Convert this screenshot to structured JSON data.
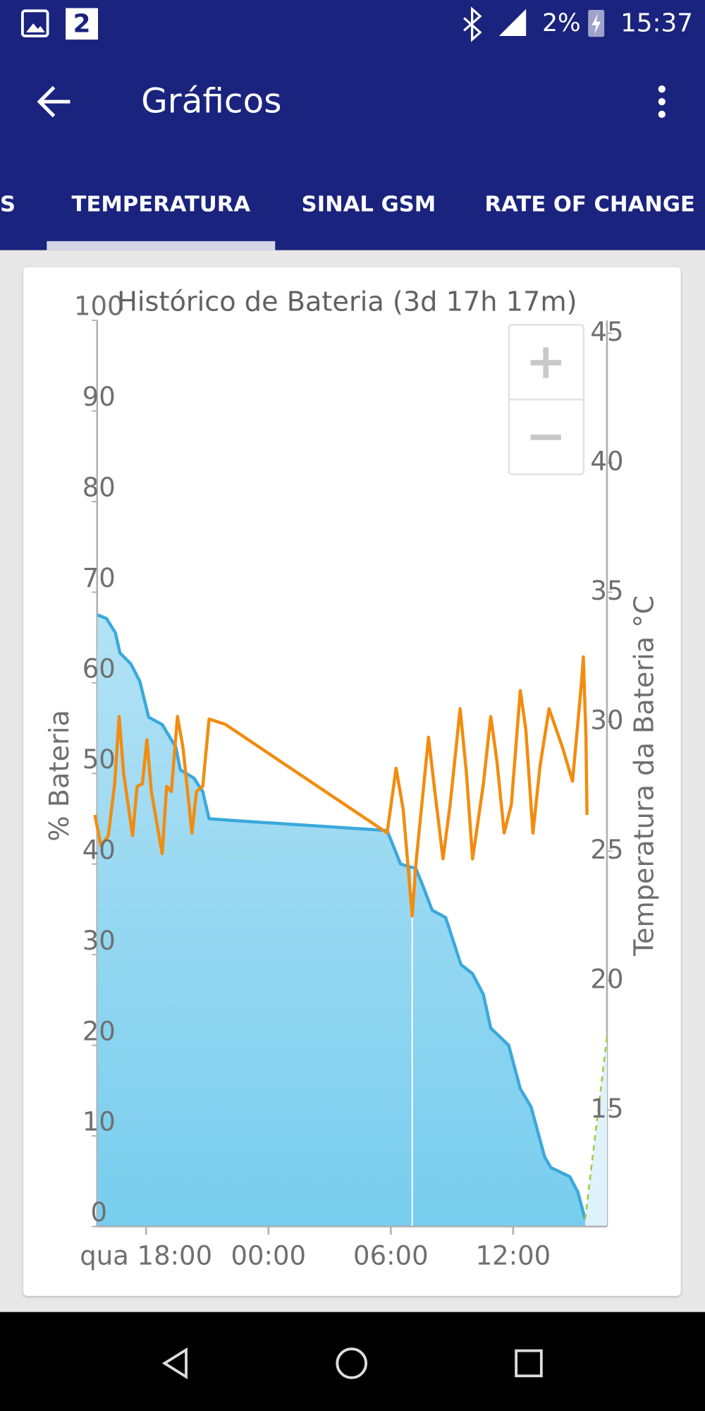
{
  "status_bar": {
    "notification_count": "2",
    "battery": "2%",
    "time": "15:37"
  },
  "app_bar": {
    "title": "Gráficos"
  },
  "tabs": [
    "S",
    "TEMPERATURA",
    "SINAL GSM",
    "RATE OF CHANGE"
  ],
  "chart_data": {
    "type": "line",
    "title": "Histórico de Bateria (3d 17h 17m)",
    "y_label": "% Bateria",
    "y2_label": "Temperatura da Bateria °C",
    "xlim": [
      15.6,
      40.6
    ],
    "xticks": [
      {
        "value": 18,
        "label": "qua 18:00"
      },
      {
        "value": 24,
        "label": "00:00"
      },
      {
        "value": 30,
        "label": "06:00"
      },
      {
        "value": 36,
        "label": "12:00"
      }
    ],
    "ylim": [
      0,
      100
    ],
    "yticks": [
      0,
      10,
      20,
      30,
      40,
      50,
      60,
      70,
      80,
      90,
      100
    ],
    "y2lim": [
      10.5,
      45.5
    ],
    "y2ticks": [
      15,
      20,
      25,
      30,
      35,
      40,
      45
    ],
    "series": [
      {
        "color": "#3aa9dc",
        "fill": true,
        "x": [
          15.62,
          16.06,
          16.5,
          16.72,
          17.25,
          17.69,
          18.13,
          18.79,
          19.46,
          19.68,
          20.34,
          20.78,
          21.09,
          22.32,
          29.82,
          30.48,
          31.23,
          31.59,
          32.03,
          32.69,
          33.44,
          34.01,
          34.54,
          34.9,
          35.78,
          36.35,
          36.88,
          37.54,
          37.85,
          38.78,
          39.17,
          39.53
        ],
        "values": [
          67.5,
          67.1,
          65.5,
          63.3,
          62.1,
          60.2,
          56.2,
          55.4,
          52.9,
          50.4,
          49.5,
          48,
          45,
          44.8,
          43.7,
          40,
          39.5,
          37.5,
          34.9,
          34.1,
          28.9,
          27.9,
          25.6,
          21.9,
          20,
          15.2,
          13.2,
          7.7,
          6.5,
          5.5,
          3.8,
          0.8
        ]
      },
      {
        "color": "#f28c0f",
        "axis": "y2",
        "x": [
          15.49,
          15.79,
          16.15,
          16.46,
          16.68,
          16.9,
          17.34,
          17.56,
          17.82,
          18.04,
          18.26,
          18.79,
          19.01,
          19.24,
          19.54,
          19.81,
          20.25,
          20.47,
          20.78,
          21.09,
          21.88,
          29.82,
          30.26,
          30.61,
          31.05,
          31.23,
          31.85,
          32.16,
          32.56,
          32.91,
          33.4,
          33.71,
          34.01,
          34.54,
          34.9,
          35.2,
          35.56,
          35.91,
          36.35,
          36.62,
          36.97,
          37.32,
          37.76,
          38.42,
          38.91,
          39.35,
          39.44,
          39.57,
          39.62
        ],
        "values": [
          26.4,
          25.2,
          25.6,
          27.6,
          30.2,
          28,
          25.6,
          27.5,
          27.6,
          29.3,
          27.3,
          24.9,
          27.5,
          27.3,
          30.2,
          29,
          25.7,
          27.3,
          27.5,
          30.1,
          29.9,
          25.7,
          28.2,
          26.6,
          22.5,
          24.5,
          29.4,
          27.3,
          24.7,
          26.8,
          30.5,
          28,
          24.7,
          27.6,
          30.2,
          28.5,
          25.7,
          26.8,
          31.2,
          29.7,
          25.7,
          28.3,
          30.5,
          29,
          27.7,
          31.5,
          32.5,
          29.4,
          26.4
        ]
      },
      {
        "color": "#9ccc3c",
        "dashed": true,
        "x": [
          39.53,
          40.6
        ],
        "values": [
          0.8,
          20.9
        ]
      }
    ]
  }
}
